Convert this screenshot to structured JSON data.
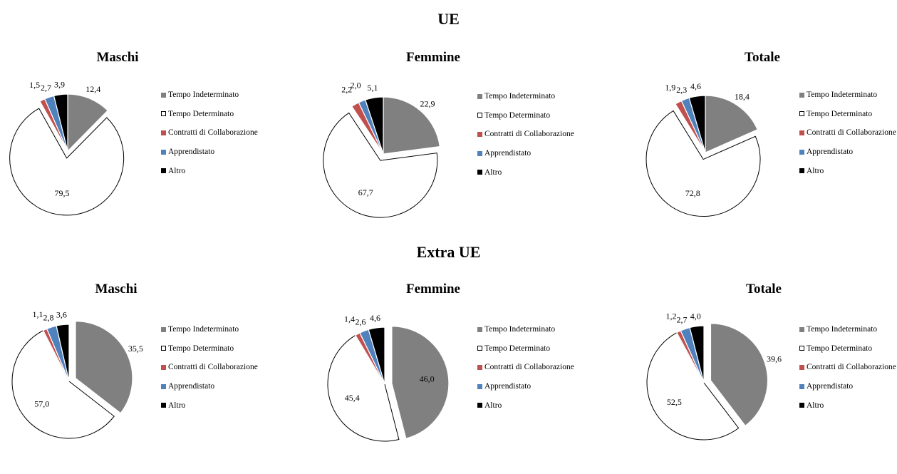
{
  "sections": [
    {
      "title": "UE"
    },
    {
      "title": "Extra UE"
    }
  ],
  "legend": [
    "Tempo Indeterminato",
    "Tempo Determinato",
    "Contratti di Collaborazione",
    "Apprendistato",
    "Altro"
  ],
  "colors": [
    "#808080",
    "#ffffff",
    "#c0504d",
    "#4f81bd",
    "#000000"
  ],
  "chart_data": [
    {
      "type": "pie",
      "section": "UE",
      "title": "Maschi",
      "categories": [
        "Tempo Indeterminato",
        "Tempo Determinato",
        "Contratti di Collaborazione",
        "Apprendistato",
        "Altro"
      ],
      "values": [
        12.4,
        79.5,
        1.5,
        2.7,
        3.9
      ],
      "labels": [
        "12,4",
        "79,5",
        "1,5",
        "2,7",
        "3,9"
      ],
      "exploded": "Tempo Determinato",
      "legend_position": "right"
    },
    {
      "type": "pie",
      "section": "UE",
      "title": "Femmine",
      "categories": [
        "Tempo Indeterminato",
        "Tempo Determinato",
        "Contratti di Collaborazione",
        "Apprendistato",
        "Altro"
      ],
      "values": [
        22.9,
        67.7,
        2.2,
        2.0,
        5.1
      ],
      "labels": [
        "22,9",
        "67,7",
        "2,2",
        "2,0",
        "5,1"
      ],
      "exploded": "Tempo Determinato",
      "legend_position": "right"
    },
    {
      "type": "pie",
      "section": "UE",
      "title": "Totale",
      "categories": [
        "Tempo Indeterminato",
        "Tempo Determinato",
        "Contratti di Collaborazione",
        "Apprendistato",
        "Altro"
      ],
      "values": [
        18.4,
        72.8,
        1.9,
        2.3,
        4.6
      ],
      "labels": [
        "18,4",
        "72,8",
        "1,9",
        "2,3",
        "4,6"
      ],
      "exploded": "Tempo Determinato",
      "legend_position": "right"
    },
    {
      "type": "pie",
      "section": "Extra UE",
      "title": "Maschi",
      "categories": [
        "Tempo Indeterminato",
        "Tempo Determinato",
        "Contratti di Collaborazione",
        "Apprendistato",
        "Altro"
      ],
      "values": [
        35.5,
        57.0,
        1.1,
        2.8,
        3.6
      ],
      "labels": [
        "35,5",
        "57,0",
        "1,1",
        "2,8",
        "3,6"
      ],
      "exploded": "Tempo Indeterminato",
      "legend_position": "right"
    },
    {
      "type": "pie",
      "section": "Extra UE",
      "title": "Femmine",
      "categories": [
        "Tempo Indeterminato",
        "Tempo Determinato",
        "Contratti di Collaborazione",
        "Apprendistato",
        "Altro"
      ],
      "values": [
        46.0,
        45.4,
        1.4,
        2.6,
        4.6
      ],
      "labels": [
        "46,0",
        "45,4",
        "1,4",
        "2,6",
        "4,6"
      ],
      "exploded": "Tempo Indeterminato",
      "legend_position": "right"
    },
    {
      "type": "pie",
      "section": "Extra UE",
      "title": "Totale",
      "categories": [
        "Tempo Indeterminato",
        "Tempo Determinato",
        "Contratti di Collaborazione",
        "Apprendistato",
        "Altro"
      ],
      "values": [
        39.6,
        52.5,
        1.2,
        2.7,
        4.0
      ],
      "labels": [
        "39,6",
        "52,5",
        "1,2",
        "2,7",
        "4,0"
      ],
      "exploded": "Tempo Indeterminato",
      "legend_position": "right"
    }
  ]
}
